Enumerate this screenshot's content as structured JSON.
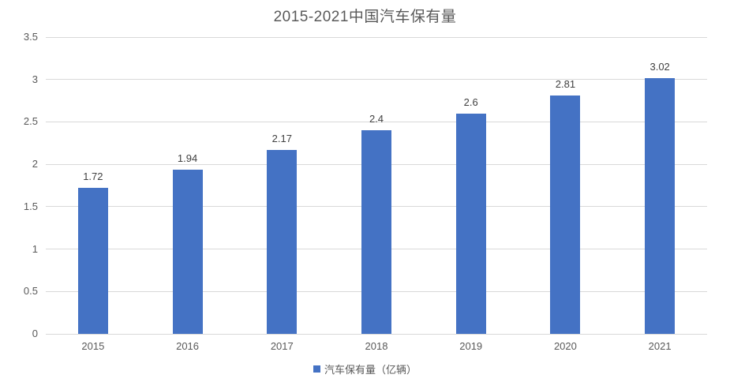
{
  "chart_data": {
    "type": "bar",
    "title": "2015-2021中国汽车保有量",
    "categories": [
      "2015",
      "2016",
      "2017",
      "2018",
      "2019",
      "2020",
      "2021"
    ],
    "values": [
      1.72,
      1.94,
      2.17,
      2.4,
      2.6,
      2.81,
      3.02
    ],
    "data_labels": [
      "1.72",
      "1.94",
      "2.17",
      "2.4",
      "2.6",
      "2.81",
      "3.02"
    ],
    "xlabel": "",
    "ylabel": "",
    "ylim": [
      0,
      3.5
    ],
    "ytick_step": 0.5,
    "ytick_labels": [
      "0",
      "0.5",
      "1",
      "1.5",
      "2",
      "2.5",
      "3",
      "3.5"
    ],
    "grid": true,
    "legend_position": "bottom",
    "legend": [
      {
        "label": "汽车保有量（亿辆）",
        "color": "#4472C4"
      }
    ],
    "colors": {
      "bar": "#4472C4",
      "gridline": "#D9D9D9",
      "title_text": "#595959",
      "axis_text": "#595959",
      "data_label_text": "#404040"
    }
  }
}
